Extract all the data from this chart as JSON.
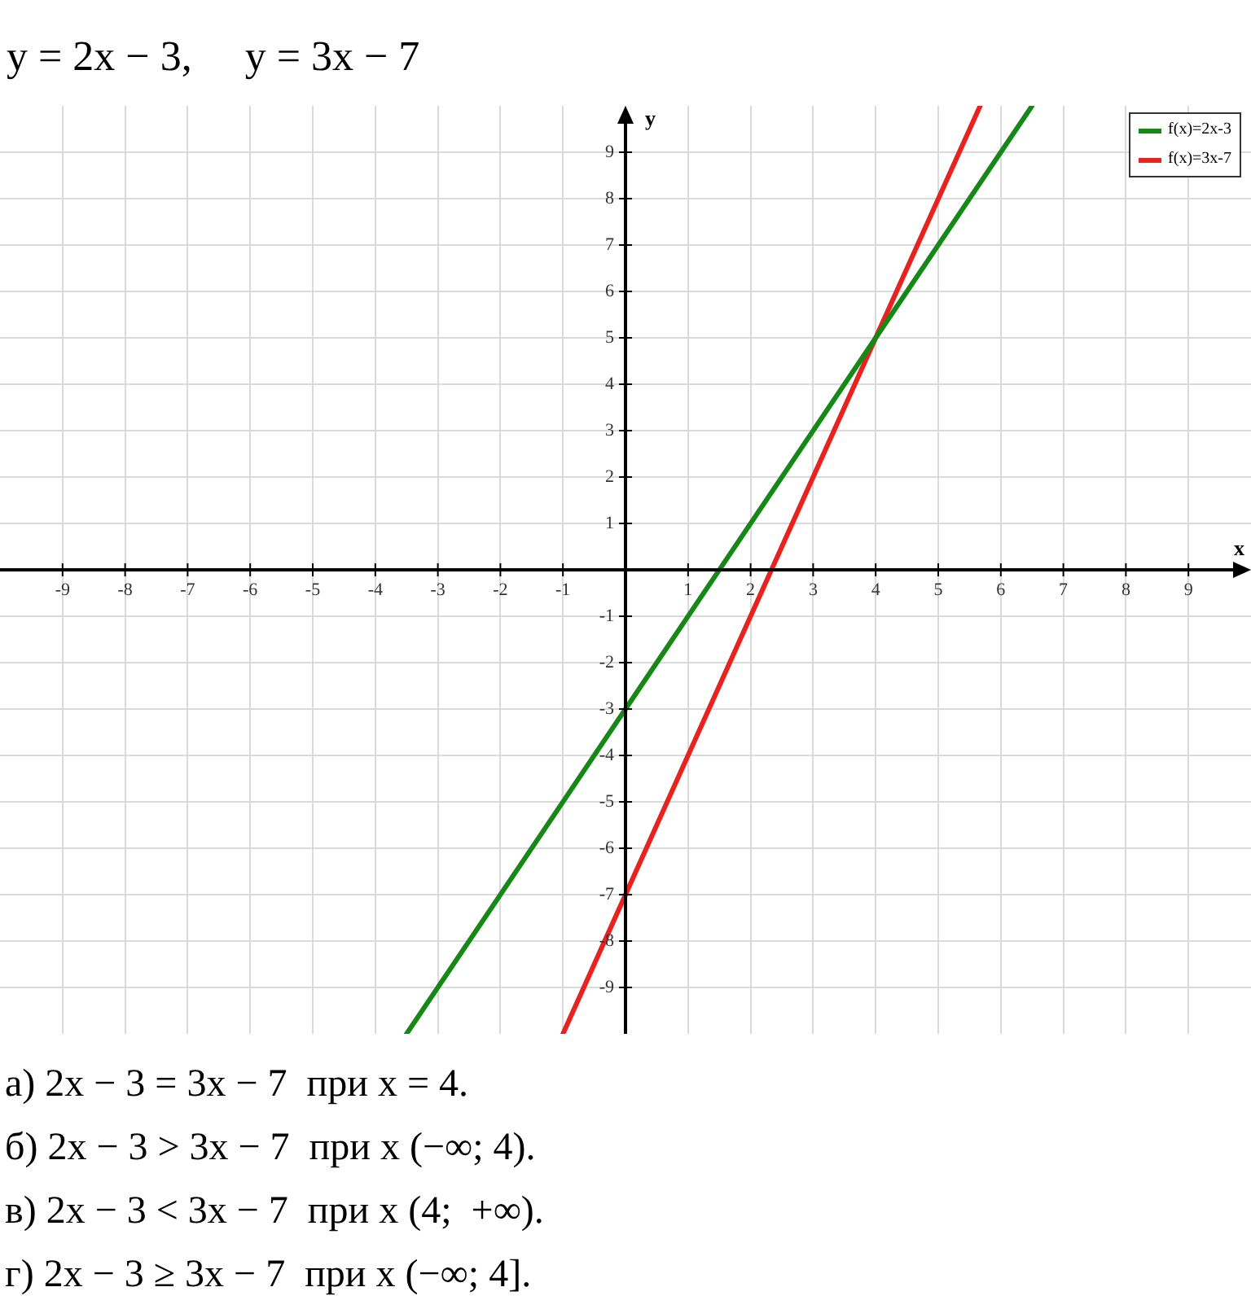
{
  "chart_data": {
    "type": "line",
    "title": "y = 2x − 3,     y = 3x − 7",
    "xlabel": "x",
    "ylabel": "y",
    "xlim": [
      -10,
      10
    ],
    "ylim": [
      -10,
      10
    ],
    "xticks": [
      -9,
      -8,
      -7,
      -6,
      -5,
      -4,
      -3,
      -2,
      -1,
      {
        "value": 0,
        "label": null
      },
      1,
      2,
      3,
      4,
      5,
      6,
      7,
      8,
      9
    ],
    "yticks": [
      -9,
      -8,
      -7,
      -6,
      -5,
      -4,
      -3,
      -2,
      -1,
      {
        "value": 0,
        "label": null
      },
      1,
      2,
      3,
      4,
      5,
      6,
      7,
      8,
      9
    ],
    "grid": true,
    "legend": "top right",
    "marker": "none",
    "series": [
      {
        "name": "f(x)=2x-3",
        "color": "#168816",
        "x": [
          -3.5,
          0,
          4,
          6.5
        ],
        "values": [
          -10,
          -3,
          5,
          10
        ]
      },
      {
        "name": "f(x)=3x-7",
        "color": "#e8231f",
        "x": [
          -1,
          0,
          4,
          5.67
        ],
        "values": [
          -10,
          -7,
          5,
          10
        ]
      }
    ],
    "annotations": [
      "а) 2x − 3 = 3x − 7  при x = 4.",
      "б) 2x − 3 > 3x − 7  при x (−∞; 4).",
      "в) 2x − 3 < 3x − 7  при x (4;  +∞).",
      "г) 2x − 3 ≥ 3x − 7  при x (−∞; 4]."
    ]
  }
}
